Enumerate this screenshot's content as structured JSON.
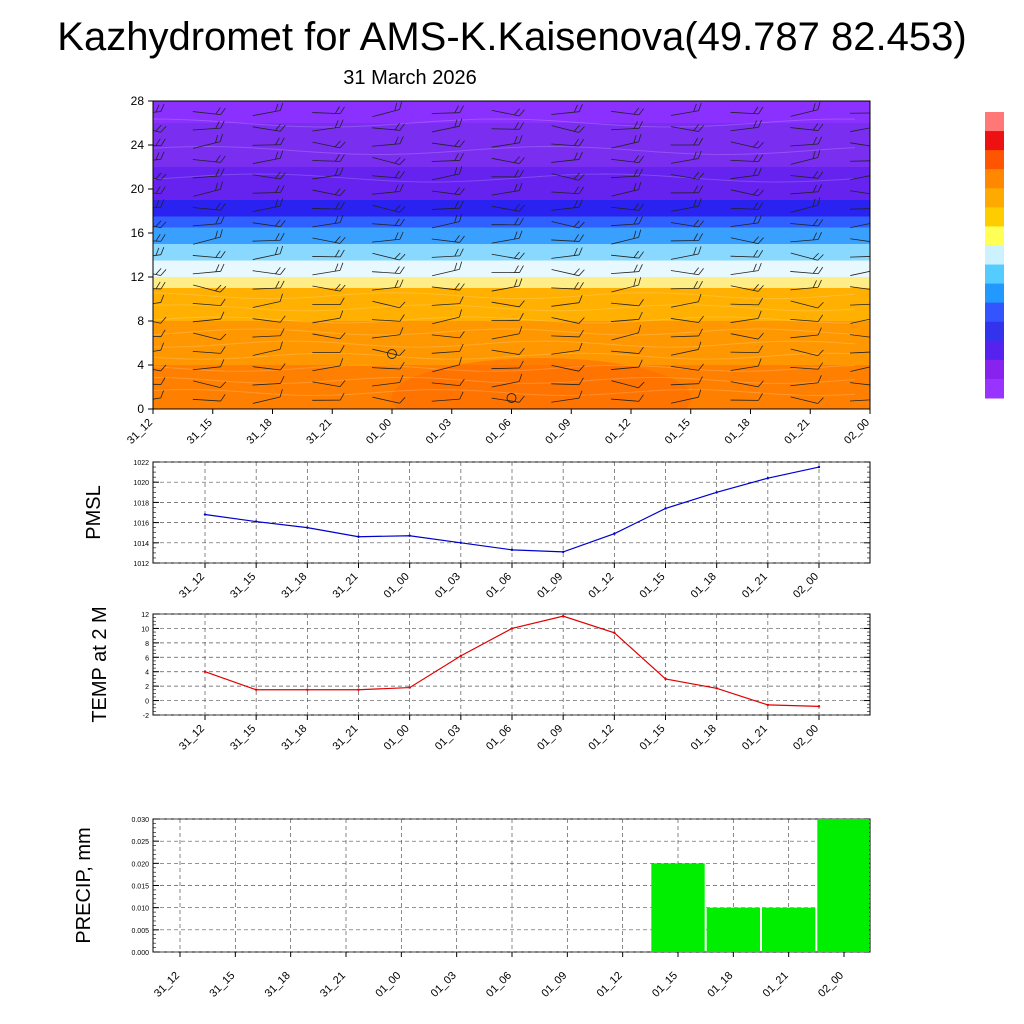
{
  "title": "Kazhydromet for AMS-K.Kaisenova(49.787 82.453)",
  "subtitle": "31 March 2026",
  "colors": {
    "pmsl_line": "#0000cc",
    "temp_line": "#e00000",
    "precip_bar": "#00ee00",
    "colorbar": [
      "#ff7777",
      "#ee1111",
      "#ff5500",
      "#ff8800",
      "#ffaa00",
      "#ffcc00",
      "#ffff55",
      "#ccf2ff",
      "#55ccff",
      "#2299ff",
      "#3355ff",
      "#3333ee",
      "#5522ee",
      "#8822ee",
      "#9933ff"
    ]
  },
  "chart_data": [
    {
      "type": "heatmap",
      "name": "cross-section",
      "x_tick_labels": [
        "31_12",
        "31_15",
        "31_18",
        "31_21",
        "01_00",
        "01_03",
        "01_06",
        "01_09",
        "01_12",
        "01_15",
        "01_18",
        "01_21",
        "02_00"
      ],
      "ylim": [
        0,
        28
      ],
      "y_ticks": [
        0,
        4,
        8,
        12,
        16,
        20,
        24,
        28
      ],
      "bands": [
        {
          "from": 0,
          "to": 4,
          "color": "#ff8000"
        },
        {
          "from": 4,
          "to": 8,
          "color": "#ff9800"
        },
        {
          "from": 8,
          "to": 11,
          "color": "#ffb000"
        },
        {
          "from": 11,
          "to": 12,
          "color": "#ffee88"
        },
        {
          "from": 12,
          "to": 13.5,
          "color": "#e8f8ff"
        },
        {
          "from": 13.5,
          "to": 15,
          "color": "#88d8ff"
        },
        {
          "from": 15,
          "to": 16.5,
          "color": "#3aa0ff"
        },
        {
          "from": 16.5,
          "to": 17.5,
          "color": "#3060ff"
        },
        {
          "from": 17.5,
          "to": 19,
          "color": "#2a22f0"
        },
        {
          "from": 19,
          "to": 22,
          "color": "#6622ee"
        },
        {
          "from": 22,
          "to": 26,
          "color": "#7a2ef0"
        },
        {
          "from": 26,
          "to": 28,
          "color": "#8a30ff"
        }
      ]
    },
    {
      "type": "line",
      "name": "pmsl",
      "ylabel": "PMSL",
      "categories": [
        "31_12",
        "31_15",
        "31_18",
        "31_21",
        "01_00",
        "01_03",
        "01_06",
        "01_09",
        "01_12",
        "01_15",
        "01_18",
        "01_21",
        "02_00"
      ],
      "values": [
        1016.8,
        1016.1,
        1015.5,
        1014.6,
        1014.7,
        1014.0,
        1013.3,
        1013.1,
        1014.9,
        1017.4,
        1019.0,
        1020.4,
        1021.5
      ],
      "ylim": [
        1012,
        1022
      ],
      "y_ticks": [
        1012,
        1014,
        1016,
        1018,
        1020,
        1022
      ]
    },
    {
      "type": "line",
      "name": "temp",
      "ylabel": "TEMP at 2 M",
      "categories": [
        "31_12",
        "31_15",
        "31_18",
        "31_21",
        "01_00",
        "01_03",
        "01_06",
        "01_09",
        "01_12",
        "01_15",
        "01_18",
        "01_21",
        "02_00"
      ],
      "values": [
        4.0,
        1.5,
        1.5,
        1.5,
        1.8,
        6.2,
        10.0,
        11.7,
        9.4,
        3.0,
        1.7,
        -0.6,
        -0.8
      ],
      "ylim": [
        -2,
        12
      ],
      "y_ticks": [
        -2,
        0,
        2,
        4,
        6,
        8,
        10,
        12
      ]
    },
    {
      "type": "bar",
      "name": "precip",
      "ylabel": "PRECIP, mm",
      "categories": [
        "31_12",
        "31_15",
        "31_18",
        "31_21",
        "01_00",
        "01_03",
        "01_06",
        "01_09",
        "01_12",
        "01_15",
        "01_18",
        "01_21",
        "02_00"
      ],
      "values": [
        0,
        0,
        0,
        0,
        0,
        0,
        0,
        0,
        0,
        0.02,
        0.01,
        0.01,
        0.03
      ],
      "ylim": [
        0,
        0.03
      ],
      "y_ticks": [
        "0.000",
        "0.005",
        "0.010",
        "0.015",
        "0.020",
        "0.025",
        "0.030"
      ]
    }
  ]
}
